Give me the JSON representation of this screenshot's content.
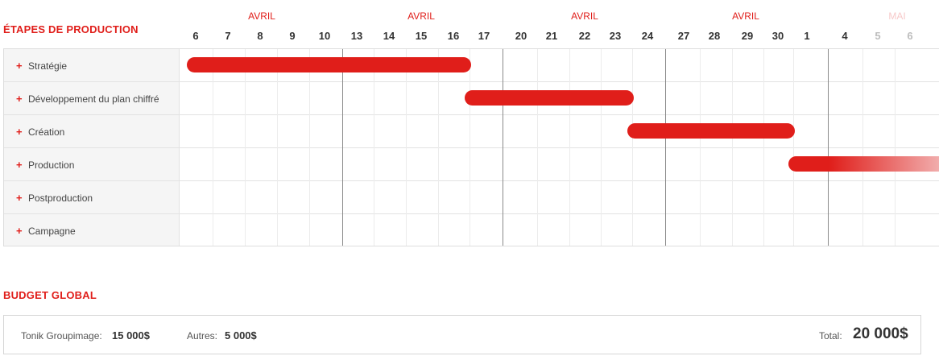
{
  "colors": {
    "accent": "#e01e1a",
    "accent_faded": "#f3bcbc",
    "accent_light": "#f7c9c9"
  },
  "timeline": {
    "title": "ÉTAPES DE PRODUCTION",
    "months": [
      {
        "label": "AVRIL",
        "faded": false
      },
      {
        "label": "AVRIL",
        "faded": false
      },
      {
        "label": "AVRIL",
        "faded": false
      },
      {
        "label": "AVRIL",
        "faded": false
      },
      {
        "label": "MAI",
        "faded": true
      }
    ],
    "days": [
      "6",
      "7",
      "8",
      "9",
      "10",
      "13",
      "14",
      "15",
      "16",
      "17",
      "20",
      "21",
      "22",
      "23",
      "24",
      "27",
      "28",
      "29",
      "30",
      "1",
      "4",
      "5",
      "6"
    ],
    "faded_days": [
      21,
      22
    ],
    "stages": [
      {
        "label": "Stratégie",
        "expand_icon": "plus-icon",
        "bar": {
          "start": 0,
          "end": 9,
          "fade": false
        }
      },
      {
        "label": "Développement du plan chiffré",
        "expand_icon": "plus-icon",
        "bar": {
          "start": 9,
          "end": 14,
          "fade": false
        }
      },
      {
        "label": "Création",
        "expand_icon": "plus-icon",
        "bar": {
          "start": 14,
          "end": 19,
          "fade": false
        }
      },
      {
        "label": "Production",
        "expand_icon": "plus-icon",
        "bar": {
          "start": 19,
          "end": 23,
          "fade": true
        }
      },
      {
        "label": "Postproduction",
        "expand_icon": "plus-icon",
        "bar": null
      },
      {
        "label": "Campagne",
        "expand_icon": "plus-icon",
        "bar": null
      }
    ]
  },
  "budget": {
    "title": "BUDGET GLOBAL",
    "groupimage_label": "Tonik Groupimage:",
    "groupimage_value": "15 000$",
    "other_label": "Autres:",
    "other_value": "5 000$",
    "total_label": "Total:",
    "total_value": "20 000$"
  }
}
